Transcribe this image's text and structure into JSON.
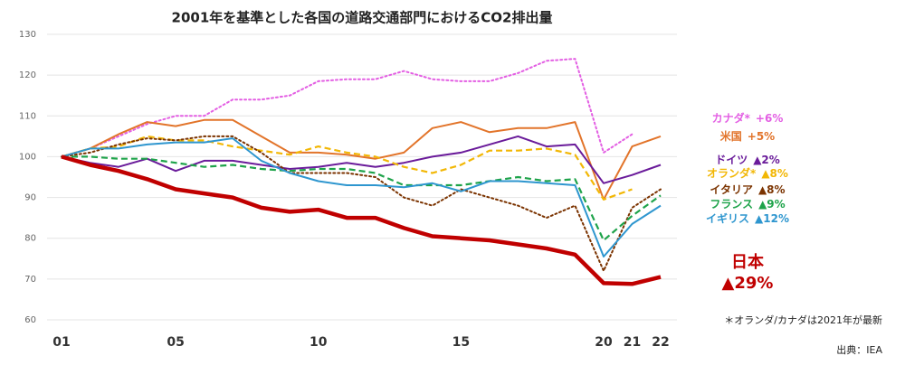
{
  "chart_data": {
    "type": "line",
    "title": "2001年を基準とした各国の道路交通部門におけるCO2排出量",
    "x": [
      2001,
      2002,
      2003,
      2004,
      2005,
      2006,
      2007,
      2008,
      2009,
      2010,
      2011,
      2012,
      2013,
      2014,
      2015,
      2016,
      2017,
      2018,
      2019,
      2020,
      2021,
      2022
    ],
    "xlim": [
      2001,
      2022
    ],
    "xticks": [
      {
        "value": 2001,
        "label": "01"
      },
      {
        "value": 2005,
        "label": "05"
      },
      {
        "value": 2010,
        "label": "10"
      },
      {
        "value": 2015,
        "label": "15"
      },
      {
        "value": 2020,
        "label": "20"
      },
      {
        "value": 2021,
        "label": "21"
      },
      {
        "value": 2022,
        "label": "22"
      }
    ],
    "ylim": [
      60,
      130
    ],
    "yticks": [
      60,
      70,
      80,
      90,
      100,
      110,
      120,
      130
    ],
    "grid": true,
    "series": [
      {
        "name": "カナダ*",
        "change": "+6%",
        "color": "#e35fe3",
        "style": "dotted",
        "values": [
          100,
          102,
          105,
          108,
          110,
          110,
          114,
          114,
          115,
          118.5,
          119,
          119,
          121,
          119,
          118.5,
          118.5,
          120.5,
          123.5,
          124,
          101,
          105.5,
          null
        ]
      },
      {
        "name": "米国",
        "change": "+5%",
        "color": "#e2742a",
        "style": "solid",
        "values": [
          100,
          102,
          105.5,
          108.5,
          107.5,
          109,
          109,
          105,
          101,
          101,
          100.5,
          99.5,
          101,
          107,
          108.5,
          106,
          107,
          107,
          108.5,
          89.5,
          102.5,
          105
        ]
      },
      {
        "name": "ドイツ",
        "change": "▲2%",
        "color": "#6a1b9a",
        "style": "solid",
        "values": [
          100,
          98.5,
          97.5,
          99.5,
          96.5,
          99,
          99,
          98,
          97,
          97.5,
          98.5,
          97.5,
          98.5,
          100,
          101,
          103,
          105,
          102.5,
          103,
          93.5,
          95.5,
          98
        ]
      },
      {
        "name": "オランダ*",
        "change": "▲8%",
        "color": "#f2b705",
        "style": "dashed",
        "values": [
          100,
          102,
          102.5,
          105,
          104,
          104,
          102.5,
          101.5,
          100.5,
          102.5,
          101,
          100,
          97.5,
          96,
          98,
          101.5,
          101.5,
          102,
          100.5,
          89.5,
          92,
          null
        ]
      },
      {
        "name": "イタリア",
        "change": "▲8%",
        "color": "#7b3300",
        "style": "dotted",
        "values": [
          100,
          101,
          103,
          104.5,
          104,
          105,
          105,
          101,
          96,
          96,
          96,
          95,
          90,
          88,
          92,
          90,
          88,
          85,
          88,
          72,
          87.5,
          92
        ]
      },
      {
        "name": "フランス",
        "change": "▲9%",
        "color": "#1ea34a",
        "style": "dashed",
        "values": [
          100,
          100,
          99.5,
          99.5,
          98.5,
          97.5,
          98,
          97,
          96.5,
          97,
          97,
          96,
          93,
          93,
          93,
          94,
          95,
          94,
          94.5,
          79.5,
          85.5,
          90.5
        ]
      },
      {
        "name": "イギリス",
        "change": "▲12%",
        "color": "#2e96cf",
        "style": "solid",
        "values": [
          100,
          102,
          102,
          103,
          103.5,
          103.5,
          104.5,
          99,
          96,
          94,
          93,
          93,
          92.5,
          93.5,
          91.5,
          94,
          94,
          93.5,
          93,
          75.5,
          83.5,
          88
        ]
      },
      {
        "name": "日本",
        "change": "▲29%",
        "color": "#c00000",
        "style": "bold",
        "values": [
          100,
          98,
          96.5,
          94.5,
          92,
          91,
          90,
          87.5,
          86.5,
          87,
          85,
          85,
          82.5,
          80.5,
          80,
          79.5,
          78.5,
          77.5,
          76,
          69,
          68.8,
          70.5
        ]
      }
    ],
    "note": "＊オランダ/カナダは2021年が最新",
    "source": "出典：IEA"
  }
}
